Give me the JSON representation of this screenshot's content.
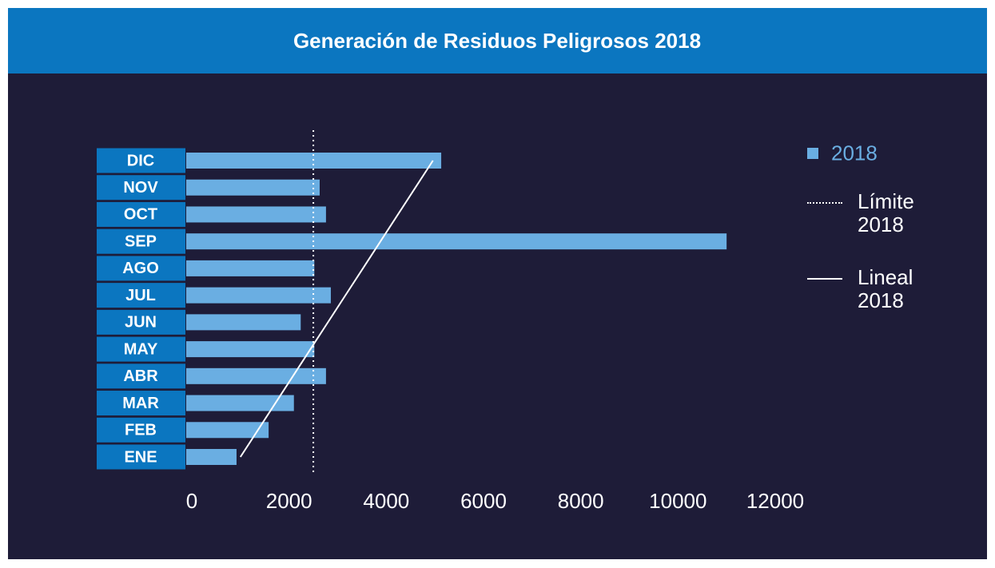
{
  "chart_data": {
    "type": "bar",
    "orientation": "horizontal",
    "title": "Generación de Residuos Peligrosos 2018",
    "categories": [
      "ENE",
      "FEB",
      "MAR",
      "ABR",
      "MAY",
      "JUN",
      "JUL",
      "AGO",
      "SEP",
      "OCT",
      "NOV",
      "DIC"
    ],
    "series": [
      {
        "name": "2018",
        "type": "bar",
        "color": "#6aaee2",
        "values": [
          920,
          1580,
          2100,
          2760,
          2520,
          2240,
          2860,
          2520,
          11000,
          2760,
          2630,
          5130
        ]
      },
      {
        "name": "Lineal 2018",
        "type": "line",
        "color": "#ffffff",
        "values": [
          1000,
          1360,
          1720,
          2080,
          2440,
          2800,
          3160,
          3520,
          3880,
          4240,
          4600,
          4960
        ]
      }
    ],
    "reference_line": {
      "name": "Límite 2018",
      "value": 2500,
      "color": "#ffffff",
      "style": "dotted"
    },
    "xlim": [
      0,
      12000
    ],
    "xticks": [
      0,
      2000,
      4000,
      6000,
      8000,
      10000,
      12000
    ],
    "legend": "right"
  }
}
